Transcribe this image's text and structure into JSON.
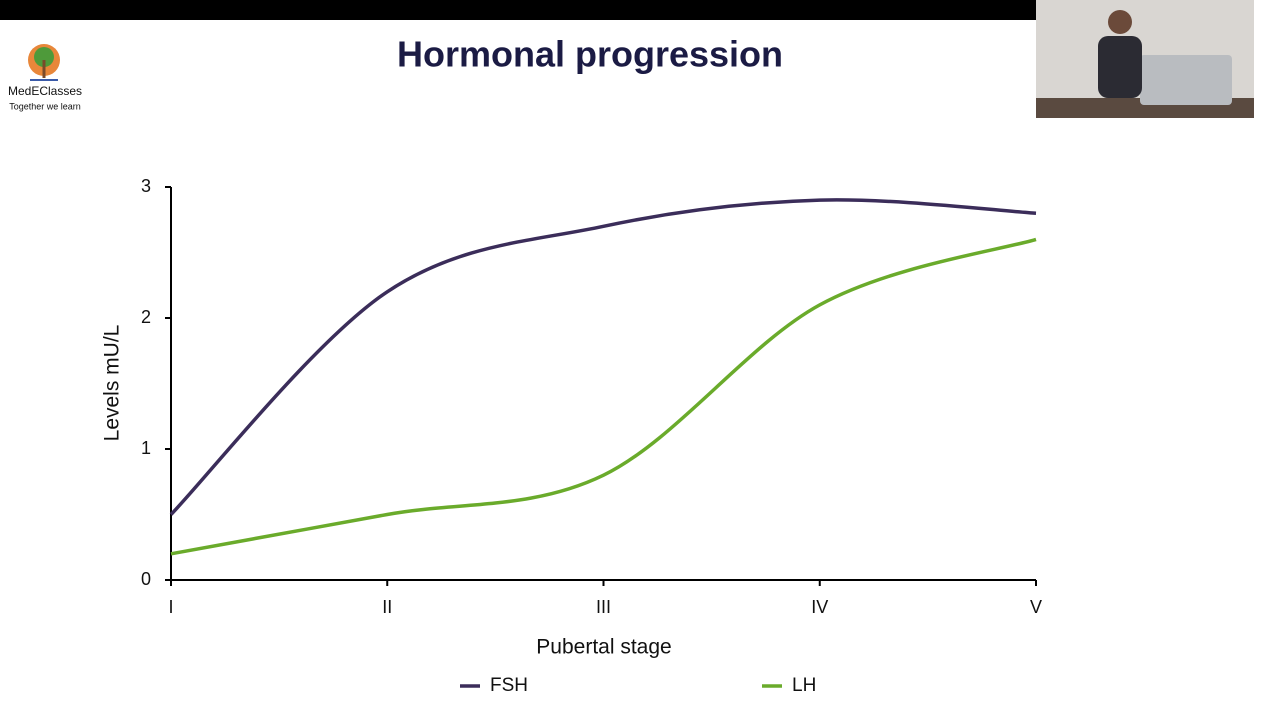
{
  "logo": {
    "name": "MedEClasses",
    "tagline": "Together we learn"
  },
  "chart_data": {
    "type": "line",
    "title": "Hormonal progression",
    "x_label": "Pubertal stage",
    "y_label": "Levels mU/L",
    "categories": [
      "I",
      "II",
      "III",
      "IV",
      "V"
    ],
    "series": [
      {
        "name": "FSH",
        "color": "#3b2d5a",
        "values": [
          0.5,
          2.2,
          2.7,
          2.9,
          2.8
        ]
      },
      {
        "name": "LH",
        "color": "#6aab2b",
        "values": [
          0.2,
          0.5,
          0.8,
          2.1,
          2.6
        ]
      }
    ],
    "ylim": [
      0,
      3
    ],
    "yticks": [
      0,
      1,
      2,
      3
    ],
    "smooth": true,
    "legend": "bottom"
  }
}
